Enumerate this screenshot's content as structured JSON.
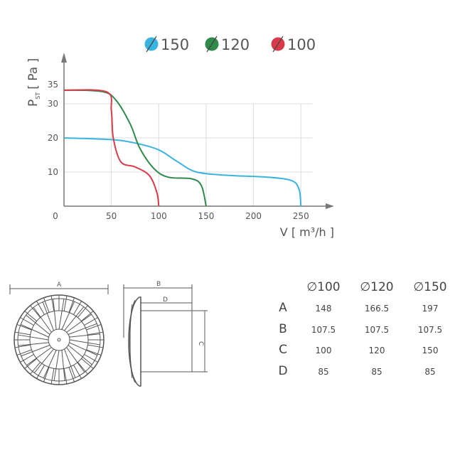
{
  "chart_data": {
    "type": "line",
    "xlabel": "V [ m³/h ]",
    "ylabel_main": "P",
    "ylabel_sub": "ST",
    "ylabel_unit": "[ Pa ]",
    "xlim": [
      0,
      270
    ],
    "ylim": [
      0,
      40
    ],
    "x_ticks": [
      "0",
      "50",
      "100",
      "150",
      "200",
      "250"
    ],
    "x_tick_values": [
      0,
      50,
      100,
      150,
      200,
      250
    ],
    "y_ticks": [
      "10",
      "20",
      "30",
      "35"
    ],
    "y_tick_values": [
      10,
      20,
      30,
      35
    ],
    "grid": true,
    "legend_position": "top",
    "series": [
      {
        "name": "∅150",
        "color": "#3bb3e0",
        "x": [
          0,
          50,
          75,
          100,
          120,
          140,
          175,
          215,
          240,
          248,
          250
        ],
        "y": [
          20,
          19.5,
          18.5,
          16.5,
          13,
          10,
          9,
          8.5,
          7.5,
          5,
          0
        ]
      },
      {
        "name": "∅120",
        "color": "#2e8b4a",
        "x": [
          0,
          40,
          55,
          70,
          80,
          95,
          110,
          135,
          145,
          150
        ],
        "y": [
          34,
          33.6,
          31,
          24,
          17,
          11,
          8.5,
          8,
          6,
          0
        ]
      },
      {
        "name": "∅100",
        "color": "#d93a4a",
        "x": [
          0,
          45,
          50,
          52,
          60,
          75,
          90,
          98,
          100
        ],
        "y": [
          34,
          33.5,
          28,
          20,
          13,
          11.5,
          9,
          4,
          0
        ]
      }
    ]
  },
  "drawing": {
    "label_a": "A",
    "label_b": "B",
    "label_c": "C",
    "label_d": "D"
  },
  "table": {
    "headers": [
      "∅100",
      "∅120",
      "∅150"
    ],
    "rows": [
      {
        "label": "A",
        "values": [
          "148",
          "166.5",
          "197"
        ]
      },
      {
        "label": "B",
        "values": [
          "107.5",
          "107.5",
          "107.5"
        ]
      },
      {
        "label": "C",
        "values": [
          "100",
          "120",
          "150"
        ]
      },
      {
        "label": "D",
        "values": [
          "85",
          "85",
          "85"
        ]
      }
    ]
  }
}
